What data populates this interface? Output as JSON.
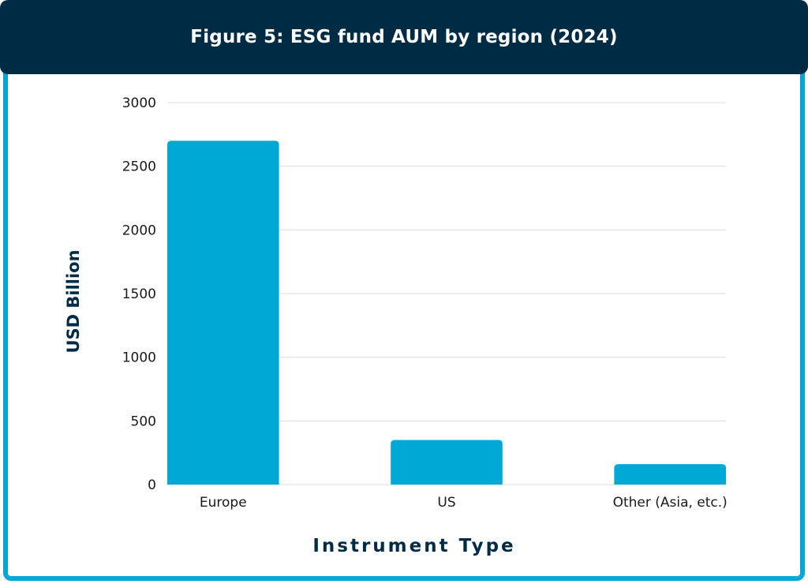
{
  "header": {
    "title": "Figure 5: ESG fund AUM by region (2024)"
  },
  "colors": {
    "header_bg": "#002b45",
    "accent": "#00a8d6",
    "bar": "#00a8d6",
    "axis_text": "#002b45",
    "grid": "#dcdcdc"
  },
  "chart_data": {
    "type": "bar",
    "title": "Figure 5: ESG fund AUM by region (2024)",
    "categories": [
      "Europe",
      "US",
      "Other (Asia, etc.)"
    ],
    "values": [
      2700,
      350,
      160
    ],
    "xlabel": "Instrument Type",
    "ylabel": "USD Billion",
    "ylim": [
      0,
      3000
    ],
    "yticks": [
      0,
      500,
      1000,
      1500,
      2000,
      2500,
      3000
    ],
    "grid": true,
    "legend": "none"
  }
}
